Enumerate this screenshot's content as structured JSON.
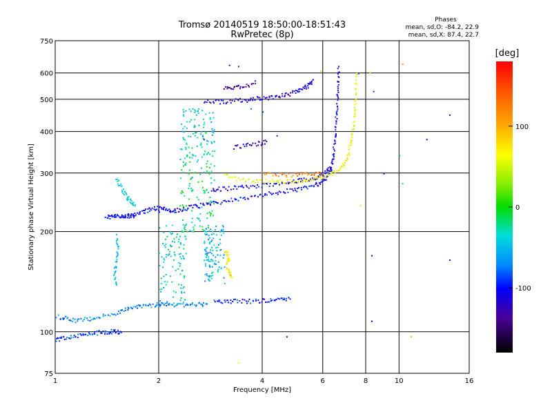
{
  "chart_data": {
    "type": "scatter",
    "title": "Tromsø 20140519 18:50:00-18:51:43",
    "subtitle": "RwPretec (8p)",
    "stats": {
      "heading": "Phases",
      "line1": "mean, sd,O: -84.2, 22.9",
      "line2": "mean, sd,X:  87.4, 22.7"
    },
    "xlabel": "Frequency [MHz]",
    "ylabel": "Stationary phase Virtual Height [km]",
    "xscale": "log",
    "yscale": "log",
    "xlim": [
      1,
      16
    ],
    "ylim": [
      75,
      750
    ],
    "xticks": [
      1,
      2,
      4,
      6,
      8,
      10,
      16
    ],
    "xtick_labels": [
      "1",
      "2",
      "4",
      "6",
      "8",
      "10",
      "16"
    ],
    "x_gridlines": [
      2,
      4,
      6,
      8,
      10
    ],
    "yticks": [
      75,
      100,
      200,
      300,
      400,
      500,
      600,
      750
    ],
    "ytick_labels": [
      "75",
      "100",
      "200",
      "300",
      "400",
      "500",
      "600",
      "750"
    ],
    "y_gridlines": [
      100,
      200,
      300,
      400,
      500,
      600
    ],
    "grid": true,
    "colorbar": {
      "label": "[deg]",
      "range": [
        -180,
        180
      ],
      "ticks": [
        100,
        0,
        -100
      ],
      "tick_labels": [
        "100",
        "0",
        "-100"
      ]
    },
    "traces": [
      {
        "points": [
          [
            1.0,
            95
          ],
          [
            1.05,
            96
          ],
          [
            1.12,
            97
          ],
          [
            1.2,
            98
          ],
          [
            1.28,
            99
          ],
          [
            1.35,
            100
          ],
          [
            1.42,
            100
          ],
          [
            1.48,
            101
          ],
          [
            1.55,
            100
          ]
        ],
        "phase": -90
      },
      {
        "points": [
          [
            1.0,
            112
          ],
          [
            1.08,
            110
          ],
          [
            1.15,
            108
          ],
          [
            1.25,
            110
          ],
          [
            1.35,
            112
          ],
          [
            1.5,
            114
          ],
          [
            1.6,
            117
          ],
          [
            1.7,
            119
          ],
          [
            1.82,
            120
          ],
          [
            1.95,
            121
          ],
          [
            2.05,
            121
          ],
          [
            2.2,
            121
          ],
          [
            2.4,
            121
          ],
          [
            2.6,
            121
          ],
          [
            2.75,
            122
          ]
        ],
        "phase": -70
      },
      {
        "points": [
          [
            2.9,
            125
          ],
          [
            3.1,
            124
          ],
          [
            3.3,
            124
          ],
          [
            3.6,
            124
          ],
          [
            3.9,
            124
          ],
          [
            4.2,
            125
          ],
          [
            4.5,
            125
          ],
          [
            4.8,
            126
          ]
        ],
        "phase": -95
      },
      {
        "points": [
          [
            1.4,
            222
          ],
          [
            1.45,
            223
          ],
          [
            1.5,
            223
          ],
          [
            1.55,
            223
          ],
          [
            1.6,
            224
          ],
          [
            1.65,
            224
          ],
          [
            1.7,
            225
          ],
          [
            1.8,
            230
          ],
          [
            1.9,
            235
          ],
          [
            2.0,
            236
          ],
          [
            2.1,
            234
          ],
          [
            2.2,
            232
          ],
          [
            2.3,
            234
          ],
          [
            2.45,
            237
          ],
          [
            2.6,
            240
          ],
          [
            2.8,
            243
          ],
          [
            3.0,
            246
          ],
          [
            3.3,
            251
          ],
          [
            3.6,
            255
          ],
          [
            4.0,
            259
          ],
          [
            4.4,
            263
          ],
          [
            4.8,
            267
          ],
          [
            5.2,
            271
          ],
          [
            5.6,
            276
          ],
          [
            5.9,
            282
          ],
          [
            6.1,
            290
          ],
          [
            6.3,
            305
          ],
          [
            6.4,
            330
          ],
          [
            6.45,
            360
          ],
          [
            6.5,
            400
          ],
          [
            6.55,
            450
          ],
          [
            6.6,
            500
          ],
          [
            6.62,
            560
          ],
          [
            6.65,
            630
          ]
        ],
        "phase": -105
      },
      {
        "points": [
          [
            2.85,
            268
          ],
          [
            3.0,
            270
          ],
          [
            3.3,
            272
          ],
          [
            3.6,
            274
          ],
          [
            4.0,
            277
          ],
          [
            4.4,
            280
          ],
          [
            4.8,
            283
          ],
          [
            5.2,
            287
          ],
          [
            5.6,
            291
          ],
          [
            5.9,
            296
          ],
          [
            6.1,
            302
          ],
          [
            6.3,
            312
          ]
        ],
        "phase": -110
      },
      {
        "points": [
          [
            3.1,
            298
          ],
          [
            3.4,
            289
          ],
          [
            3.8,
            285
          ],
          [
            4.2,
            284
          ],
          [
            4.6,
            284
          ],
          [
            5.0,
            285
          ],
          [
            5.4,
            287
          ],
          [
            5.8,
            290
          ],
          [
            6.2,
            296
          ],
          [
            6.6,
            305
          ],
          [
            6.9,
            320
          ],
          [
            7.1,
            345
          ],
          [
            7.25,
            380
          ],
          [
            7.35,
            420
          ],
          [
            7.42,
            470
          ],
          [
            7.46,
            530
          ],
          [
            7.5,
            600
          ]
        ],
        "phase": 60
      },
      {
        "points": [
          [
            4.0,
            299
          ],
          [
            4.5,
            297
          ],
          [
            5.0,
            298
          ],
          [
            5.5,
            300
          ],
          [
            6.0,
            300
          ]
        ],
        "phase": 125
      },
      {
        "points": [
          [
            2.7,
            492
          ],
          [
            2.95,
            494
          ],
          [
            3.2,
            495
          ],
          [
            3.5,
            498
          ],
          [
            3.8,
            503
          ],
          [
            4.1,
            508
          ],
          [
            4.4,
            513
          ],
          [
            4.7,
            519
          ],
          [
            5.0,
            528
          ],
          [
            5.25,
            540
          ],
          [
            5.45,
            555
          ],
          [
            5.6,
            575
          ]
        ],
        "phase": -115
      },
      {
        "points": [
          [
            3.1,
            540
          ],
          [
            3.3,
            545
          ],
          [
            3.5,
            550
          ],
          [
            3.8,
            560
          ]
        ],
        "phase": -140
      },
      {
        "points": [
          [
            3.3,
            360
          ],
          [
            3.6,
            364
          ],
          [
            3.9,
            370
          ],
          [
            4.1,
            375
          ]
        ],
        "phase": -125
      },
      {
        "points": [
          [
            1.5,
            290
          ],
          [
            1.55,
            272
          ],
          [
            1.6,
            258
          ],
          [
            1.65,
            248
          ],
          [
            1.7,
            242
          ]
        ],
        "phase": -40
      },
      {
        "points": [
          [
            1.5,
            195
          ],
          [
            1.52,
            180
          ],
          [
            1.5,
            165
          ],
          [
            1.48,
            150
          ],
          [
            1.5,
            140
          ]
        ],
        "phase": -45
      },
      {
        "points": [
          [
            3.1,
            175
          ],
          [
            3.2,
            168
          ],
          [
            3.15,
            160
          ],
          [
            3.2,
            152
          ],
          [
            3.25,
            146
          ]
        ],
        "phase": 75
      }
    ],
    "clusters": [
      {
        "x": [
          2.3,
          2.9
        ],
        "y": [
          200,
          330
        ],
        "phase": -20
      },
      {
        "x": [
          2.3,
          2.9
        ],
        "y": [
          330,
          470
        ],
        "phase": -35
      },
      {
        "x": [
          2.0,
          2.4
        ],
        "y": [
          122,
          210
        ],
        "phase": -35
      },
      {
        "x": [
          2.7,
          3.1
        ],
        "y": [
          140,
          210
        ],
        "phase": -50
      }
    ],
    "scatter": [
      [
        8.2,
        605,
        60
      ],
      [
        8.4,
        530,
        -90
      ],
      [
        10.2,
        640,
        120
      ],
      [
        12.0,
        380,
        -100
      ],
      [
        14.0,
        450,
        -100
      ],
      [
        10.0,
        340,
        -20
      ],
      [
        10.2,
        280,
        -50
      ],
      [
        14.0,
        165,
        -100
      ],
      [
        10.8,
        97,
        100
      ],
      [
        8.3,
        170,
        -100
      ],
      [
        8.3,
        108,
        -110
      ],
      [
        7.7,
        240,
        80
      ],
      [
        4.7,
        97,
        -100
      ],
      [
        3.4,
        81,
        60
      ],
      [
        3.8,
        570,
        -95
      ],
      [
        3.4,
        630,
        -130
      ],
      [
        3.2,
        635,
        -120
      ],
      [
        2.7,
        380,
        -100
      ],
      [
        2.0,
        230,
        -100
      ],
      [
        4.4,
        390,
        -120
      ],
      [
        5.9,
        610,
        90
      ],
      [
        9.0,
        300,
        -110
      ],
      [
        7.6,
        600,
        -90
      ],
      [
        4.0,
        460,
        -90
      ],
      [
        3.7,
        470,
        -80
      ]
    ]
  }
}
